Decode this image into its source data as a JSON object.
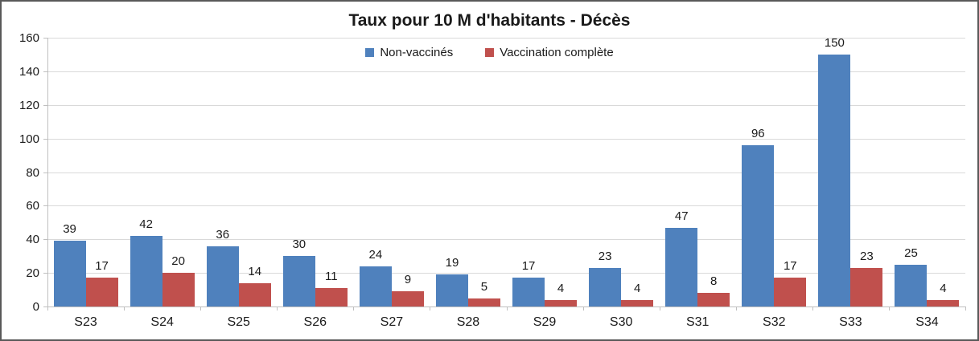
{
  "window": {
    "border_color": "#595959",
    "background": "#ffffff"
  },
  "chart_data": {
    "type": "bar",
    "title": "Taux pour 10 M d'habitants - Décès",
    "categories": [
      "S23",
      "S24",
      "S25",
      "S26",
      "S27",
      "S28",
      "S29",
      "S30",
      "S31",
      "S32",
      "S33",
      "S34"
    ],
    "series": [
      {
        "name": "Non-vaccinés",
        "color": "#4f81bd",
        "values": [
          39,
          42,
          36,
          30,
          24,
          19,
          17,
          23,
          47,
          96,
          150,
          25
        ]
      },
      {
        "name": "Vaccination complète",
        "color": "#c0504d",
        "values": [
          17,
          20,
          14,
          11,
          9,
          5,
          4,
          4,
          8,
          17,
          23,
          4
        ]
      }
    ],
    "xlabel": "",
    "ylabel": "",
    "ylim": [
      0,
      160
    ],
    "ytick_step": 20,
    "grid": true,
    "legend_position": "top-center",
    "data_labels": true,
    "colors": {
      "gridline": "#d9d9d9",
      "axis": "#bfbfbf",
      "text": "#1a1a1a"
    }
  }
}
